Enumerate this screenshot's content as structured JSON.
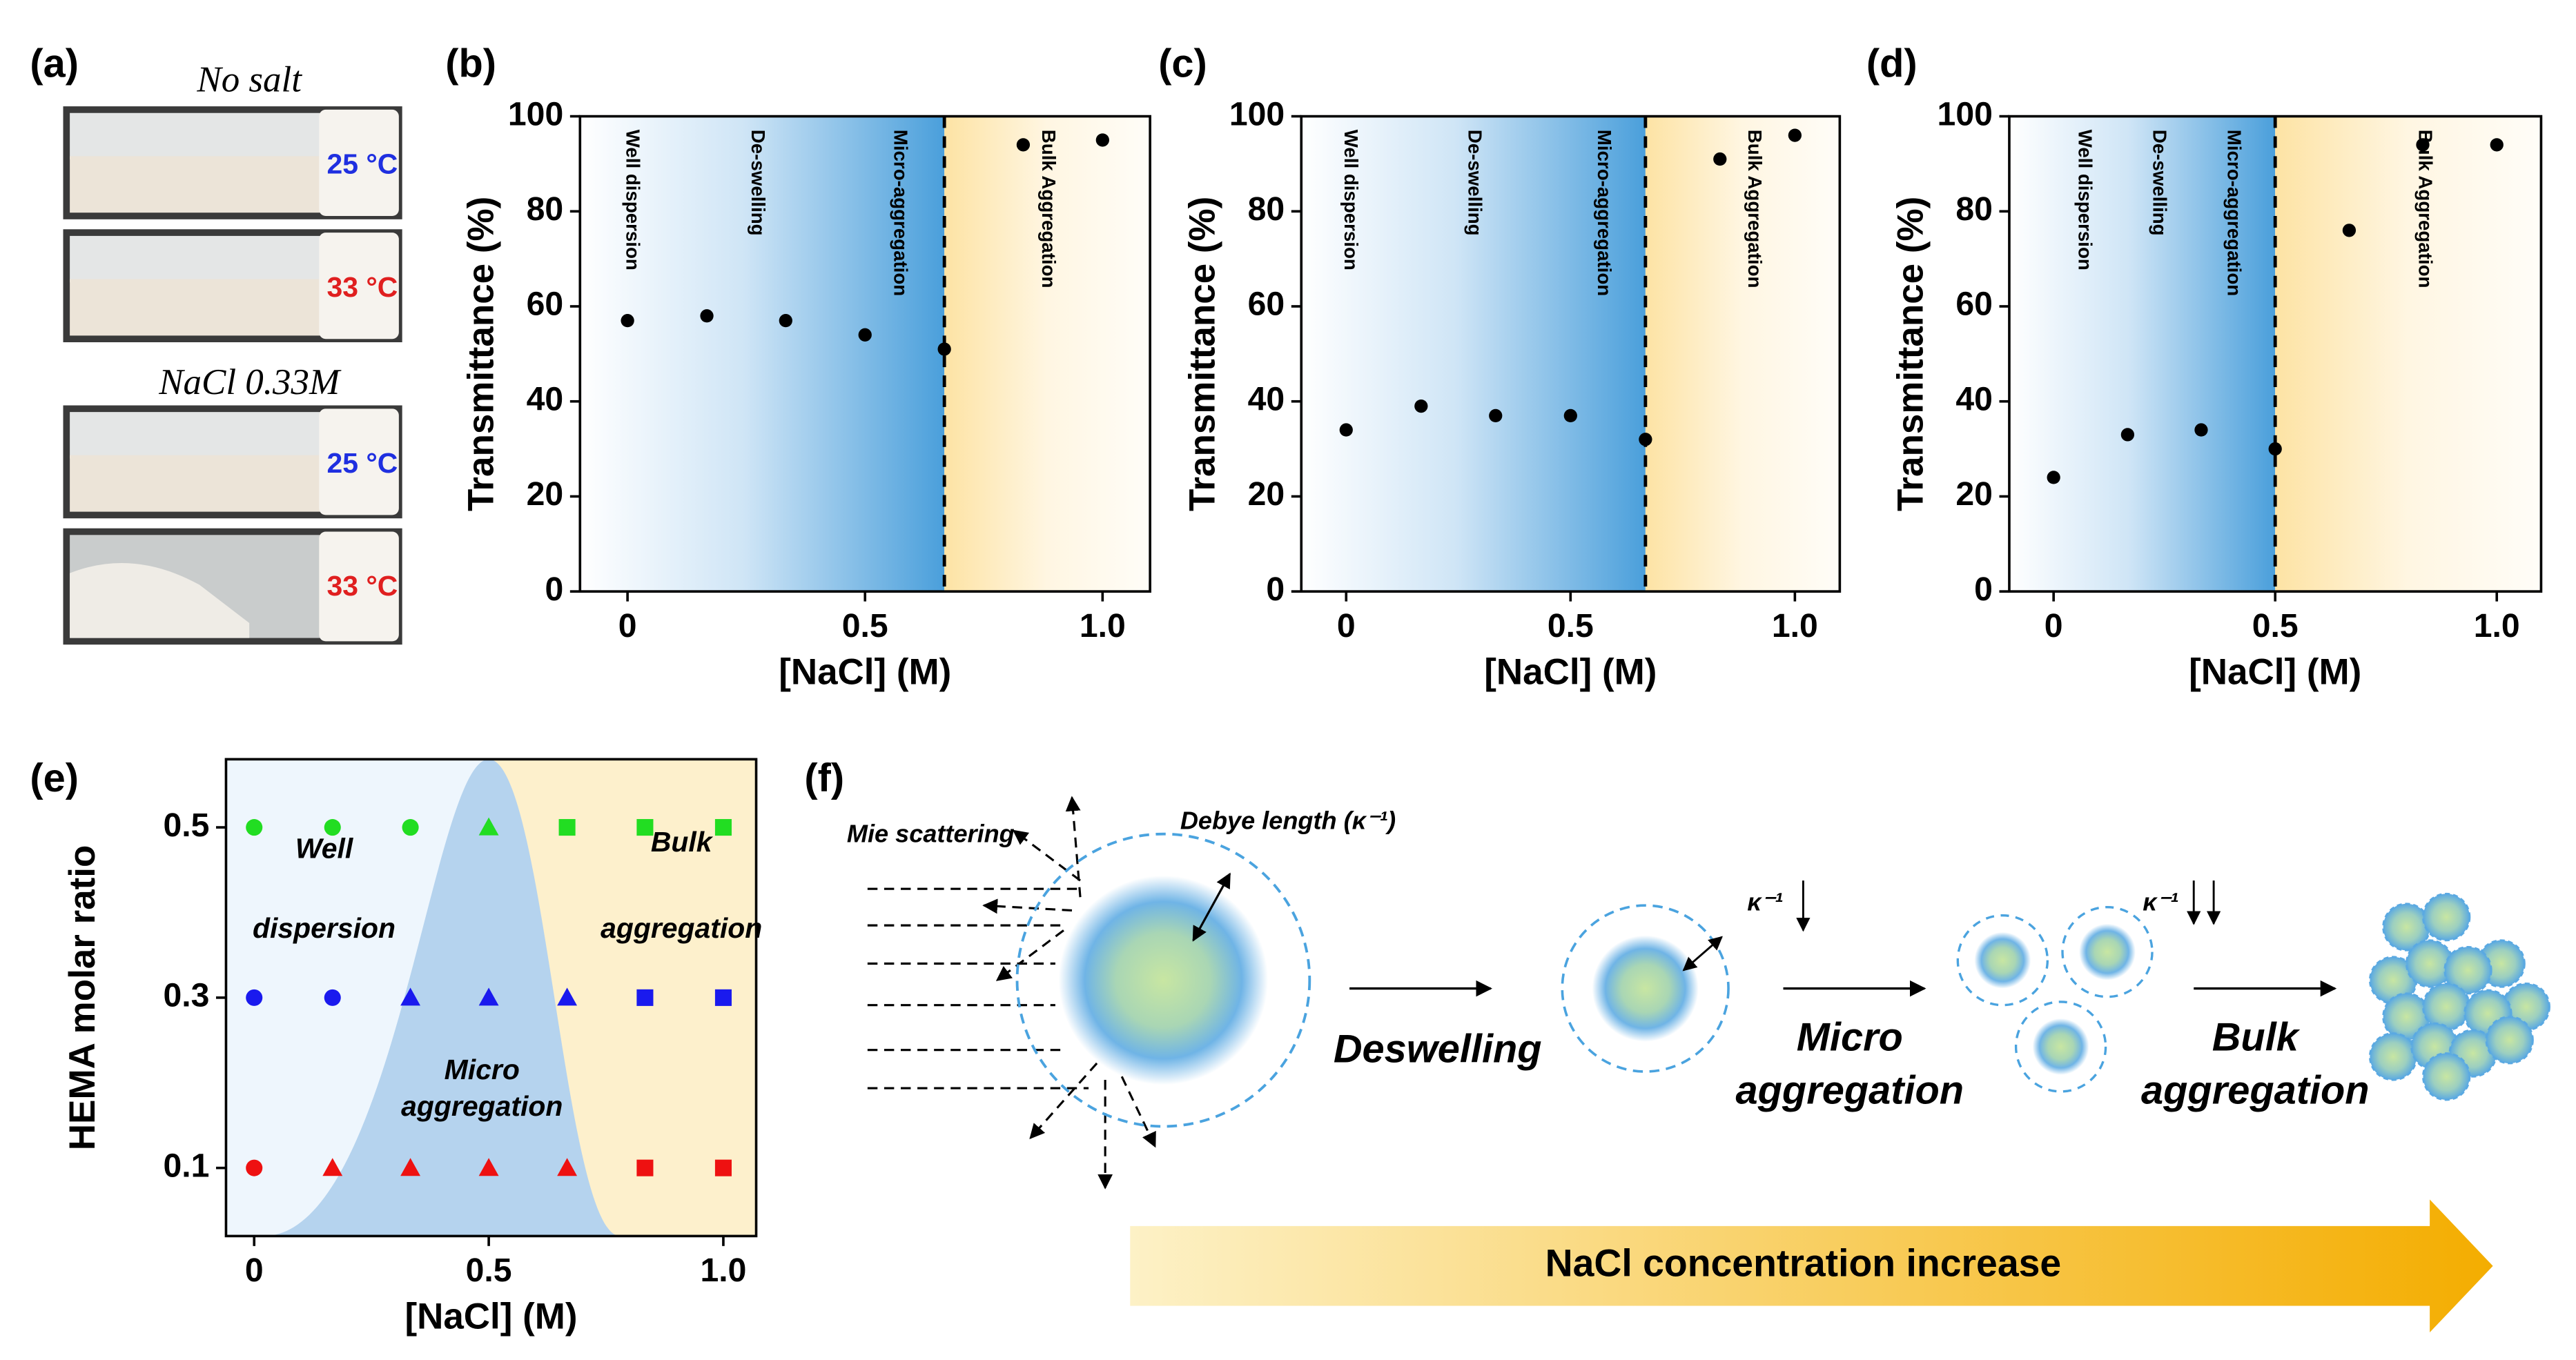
{
  "panel_a": {
    "panel": "(a)",
    "no_salt": "No salt",
    "salt": "NaCl 0.33M",
    "temps": [
      "25 °C",
      "33 °C",
      "25 °C",
      "33 °C"
    ]
  },
  "chart_data": [
    {
      "type": "scatter",
      "panel": "(b)",
      "xlabel": "[NaCl] (M)",
      "ylabel": "Transmittance (%)",
      "x": [
        0,
        0.167,
        0.333,
        0.5,
        0.667,
        0.833,
        1
      ],
      "values": [
        57,
        58,
        57,
        54,
        51,
        94,
        95
      ],
      "color": "#000000",
      "boundary": 0.667,
      "regions": [
        "Well dispersion",
        "De-swelling",
        "Micro-aggregation",
        "Bulk Aggregation"
      ],
      "xlim": [
        -0.1,
        1.1
      ],
      "ylim": [
        0,
        100
      ],
      "xticks": [
        0,
        0.5,
        {
          "value": 1,
          "label": "1.0"
        }
      ],
      "yticks": [
        0,
        20,
        40,
        60,
        80,
        100
      ]
    },
    {
      "type": "scatter",
      "panel": "(c)",
      "xlabel": "[NaCl] (M)",
      "ylabel": "Transmittance (%)",
      "x": [
        0,
        0.167,
        0.333,
        0.5,
        0.667,
        0.833,
        1
      ],
      "values": [
        34,
        39,
        37,
        37,
        32,
        91,
        96
      ],
      "color": "#000000",
      "boundary": 0.667,
      "regions": [
        "Well dispersion",
        "De-swelling",
        "Micro-aggregation",
        "Bulk Aggregation"
      ],
      "xlim": [
        -0.1,
        1.1
      ],
      "ylim": [
        0,
        100
      ],
      "xticks": [
        0,
        0.5,
        {
          "value": 1,
          "label": "1.0"
        }
      ],
      "yticks": [
        0,
        20,
        40,
        60,
        80,
        100
      ]
    },
    {
      "type": "scatter",
      "panel": "(d)",
      "xlabel": "[NaCl] (M)",
      "ylabel": "Transmittance (%)",
      "x": [
        0,
        0.167,
        0.333,
        0.5,
        0.667,
        0.833,
        1
      ],
      "values": [
        24,
        33,
        34,
        30,
        76,
        94,
        94
      ],
      "color": "#000000",
      "boundary": 0.5,
      "regions": [
        "Well dispersion",
        "De-swelling",
        "Micro-aggregation",
        "Bulk Aggregation"
      ],
      "xlim": [
        -0.1,
        1.1
      ],
      "ylim": [
        0,
        100
      ],
      "xticks": [
        0,
        0.5,
        {
          "value": 1,
          "label": "1.0"
        }
      ],
      "yticks": [
        0,
        20,
        40,
        60,
        80,
        100
      ]
    },
    {
      "type": "scatter",
      "panel": "(e)",
      "xlabel": "[NaCl] (M)",
      "ylabel": "HEMA molar ratio",
      "regions": [
        [
          "Well",
          "dispersion"
        ],
        [
          "Micro",
          "aggregation"
        ],
        [
          "Bulk",
          "aggregation"
        ]
      ],
      "xlim": [
        -0.06,
        1.07
      ],
      "ylim": [
        0.02,
        0.58
      ],
      "xticks": [
        0,
        0.5,
        {
          "value": 1,
          "label": "1.0"
        }
      ],
      "yticks": [
        0.1,
        0.3,
        0.5
      ],
      "series": [
        {
          "color": "#22dd22",
          "markers": [
            "circle",
            "circle",
            "circle",
            "triangle",
            "square",
            "square",
            "square"
          ],
          "x": [
            0,
            0.167,
            0.333,
            0.5,
            0.667,
            0.833,
            1
          ],
          "values": [
            0.5,
            0.5,
            0.5,
            0.5,
            0.5,
            0.5,
            0.5
          ]
        },
        {
          "color": "#1a1aee",
          "markers": [
            "circle",
            "circle",
            "triangle",
            "triangle",
            "triangle",
            "square",
            "square"
          ],
          "x": [
            0,
            0.167,
            0.333,
            0.5,
            0.667,
            0.833,
            1
          ],
          "values": [
            0.3,
            0.3,
            0.3,
            0.3,
            0.3,
            0.3,
            0.3
          ]
        },
        {
          "color": "#ee1111",
          "markers": [
            "circle",
            "triangle",
            "triangle",
            "triangle",
            "triangle",
            "square",
            "square"
          ],
          "x": [
            0,
            0.167,
            0.333,
            0.5,
            0.667,
            0.833,
            1
          ],
          "values": [
            0.1,
            0.1,
            0.1,
            0.1,
            0.1,
            0.1,
            0.1
          ]
        }
      ]
    }
  ],
  "panel_f": {
    "panel": "(f)",
    "mie": "Mie scattering",
    "debye": "Debye length (κ⁻¹)",
    "kappa": [
      "κ⁻¹",
      "κ⁻¹"
    ],
    "deswelling": "Deswelling",
    "micro": [
      "Micro",
      "aggregation"
    ],
    "bulk": [
      "Bulk",
      "aggregation"
    ],
    "arrow": "NaCl concentration increase"
  }
}
